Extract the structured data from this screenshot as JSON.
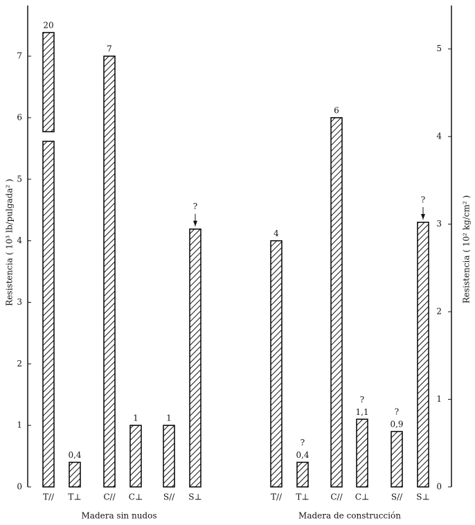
{
  "chart_data": {
    "type": "bar",
    "y_label": "Resistencia ( 10³ lb/pulgada² )",
    "y2_label": "Resistencia ( 10² kg/cm² )",
    "ylim": [
      0,
      7.8
    ],
    "yticks": [
      0,
      1,
      2,
      3,
      4,
      5,
      6,
      7
    ],
    "y2lim": [
      0,
      5.48
    ],
    "y2ticks": [
      0,
      1,
      2,
      3,
      4,
      5
    ],
    "color": "#000000",
    "groups": [
      {
        "name": "Madera sin nudos",
        "categories": [
          "T//",
          "T⊥",
          "C//",
          "C⊥",
          "S//",
          "S⊥"
        ],
        "values": [
          20,
          0.4,
          7,
          1,
          1,
          4.19
        ],
        "value_labels": [
          "20",
          "0,4",
          "7",
          "1",
          "1",
          null
        ],
        "notes": [
          null,
          null,
          null,
          null,
          null,
          "?"
        ]
      },
      {
        "name": "Madera de construcción",
        "categories": [
          "T//",
          "T⊥",
          "C//",
          "C⊥",
          "S//",
          "S⊥"
        ],
        "values": [
          4,
          0.4,
          6,
          1.1,
          0.9,
          4.3
        ],
        "value_labels": [
          "4",
          "0,4",
          "6",
          "1,1",
          "0,9",
          null
        ],
        "notes": [
          null,
          "?",
          null,
          "?",
          "?",
          "?"
        ]
      }
    ]
  }
}
